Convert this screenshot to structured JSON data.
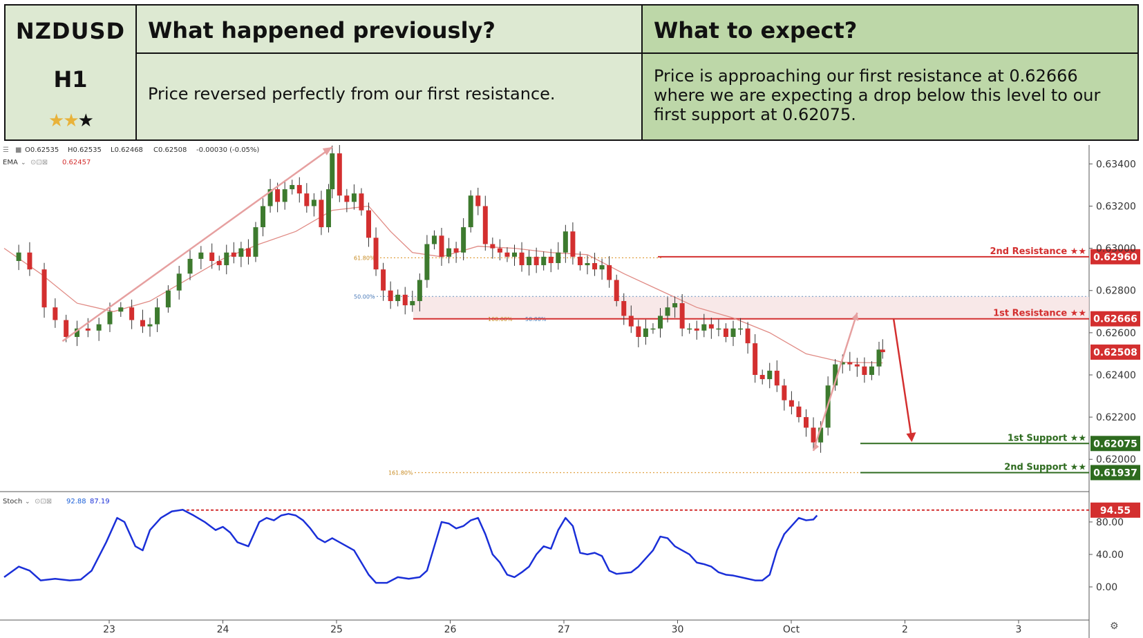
{
  "header": {
    "symbol": "NZDUSD",
    "timeframe": "H1",
    "rating": {
      "filled": 2,
      "total": 3
    },
    "previous_title": "What happened previously?",
    "previous_text": "Price reversed perfectly from our first resistance.",
    "expect_title": "What to expect?",
    "expect_text": "Price is approaching our first resistance at 0.62666 where we are expecting a drop below this level to our first support at 0.62075."
  },
  "indicators": {
    "ohlc": {
      "o": "O0.62535",
      "h": "H0.62535",
      "l": "L0.62468",
      "c": "C0.62508",
      "chg": "-0.00030 (-0.05%)"
    },
    "ema_label": "EMA",
    "ema_value": "0.62457",
    "stoch_label": "Stoch",
    "stoch_k": "92.88",
    "stoch_d": "87.19"
  },
  "chart_data": {
    "type": "candlestick",
    "title": "",
    "y_axis_ticks": [
      "0.63400",
      "0.63200",
      "0.63000",
      "0.62800",
      "0.62600",
      "0.62400",
      "0.62200",
      "0.62000"
    ],
    "x_axis_ticks": [
      "23",
      "24",
      "25",
      "26",
      "27",
      "30",
      "Oct",
      "2",
      "3"
    ],
    "ylim": [
      0.6186,
      0.6347
    ],
    "current_price": {
      "value": 0.62508,
      "label": "0.62508"
    },
    "levels": [
      {
        "name": "2nd Resistance ★★",
        "value": 0.6296,
        "label": "0.62960",
        "color": "#d32f2f"
      },
      {
        "name": "1st Resistance ★★",
        "value": 0.62666,
        "label": "0.62666",
        "color": "#d32f2f"
      },
      {
        "name": "1st Support ★★",
        "value": 0.62075,
        "label": "0.62075",
        "color": "#2e6b1f"
      },
      {
        "name": "2nd Support ★★",
        "value": 0.61937,
        "label": "0.61937",
        "color": "#2e6b1f"
      }
    ],
    "fib_labels": {
      "r618": "61.80%",
      "r50": "50.00%",
      "r100": "100.00%",
      "r50b": "50.00%",
      "e1618": "161.80%"
    },
    "fib_values": {
      "r618": 0.62955,
      "r50": 0.62772,
      "r100": 0.62665,
      "e1618": 0.61937
    },
    "colors": {
      "up": "#3d7a2e",
      "down": "#d32f2f",
      "ema": "#e08a84",
      "stoch": "#1a2fd8",
      "arrow": "#e6a0a0"
    },
    "price_series": [
      [
        0.0,
        0.6294
      ],
      [
        0.2,
        0.6298
      ],
      [
        0.35,
        0.629
      ],
      [
        0.55,
        0.6272
      ],
      [
        0.7,
        0.6266
      ],
      [
        0.85,
        0.6258
      ],
      [
        1.0,
        0.6262
      ],
      [
        1.15,
        0.6261
      ],
      [
        1.3,
        0.6264
      ],
      [
        1.45,
        0.627
      ],
      [
        1.6,
        0.6272
      ],
      [
        1.75,
        0.6266
      ],
      [
        1.9,
        0.6263
      ],
      [
        2.0,
        0.6264
      ],
      [
        2.1,
        0.6272
      ],
      [
        2.25,
        0.628
      ],
      [
        2.4,
        0.6288
      ],
      [
        2.55,
        0.6295
      ],
      [
        2.7,
        0.6298
      ],
      [
        2.85,
        0.6294
      ],
      [
        2.95,
        0.6292
      ],
      [
        3.05,
        0.6298
      ],
      [
        3.15,
        0.6296
      ],
      [
        3.25,
        0.63
      ],
      [
        3.35,
        0.6296
      ],
      [
        3.45,
        0.631
      ],
      [
        3.55,
        0.632
      ],
      [
        3.65,
        0.6328
      ],
      [
        3.75,
        0.6322
      ],
      [
        3.85,
        0.6328
      ],
      [
        3.95,
        0.633
      ],
      [
        4.05,
        0.6326
      ],
      [
        4.15,
        0.632
      ],
      [
        4.25,
        0.6323
      ],
      [
        4.35,
        0.631
      ],
      [
        4.45,
        0.6328
      ],
      [
        4.5,
        0.6345
      ],
      [
        4.6,
        0.6325
      ],
      [
        4.7,
        0.6322
      ],
      [
        4.8,
        0.6326
      ],
      [
        4.9,
        0.6318
      ],
      [
        5.0,
        0.6305
      ],
      [
        5.1,
        0.629
      ],
      [
        5.2,
        0.628
      ],
      [
        5.3,
        0.6275
      ],
      [
        5.4,
        0.6278
      ],
      [
        5.5,
        0.6273
      ],
      [
        5.6,
        0.6275
      ],
      [
        5.7,
        0.6285
      ],
      [
        5.8,
        0.6302
      ],
      [
        5.9,
        0.6306
      ],
      [
        6.0,
        0.6296
      ],
      [
        6.1,
        0.63
      ],
      [
        6.2,
        0.6298
      ],
      [
        6.3,
        0.631
      ],
      [
        6.4,
        0.6325
      ],
      [
        6.5,
        0.632
      ],
      [
        6.6,
        0.6302
      ],
      [
        6.7,
        0.63
      ],
      [
        6.8,
        0.6298
      ],
      [
        6.9,
        0.6296
      ],
      [
        7.0,
        0.6298
      ],
      [
        7.1,
        0.6292
      ],
      [
        7.2,
        0.6296
      ],
      [
        7.3,
        0.6292
      ],
      [
        7.4,
        0.6296
      ],
      [
        7.5,
        0.6293
      ],
      [
        7.6,
        0.6298
      ],
      [
        7.7,
        0.6308
      ],
      [
        7.8,
        0.6296
      ],
      [
        7.9,
        0.6292
      ],
      [
        8.0,
        0.6293
      ],
      [
        8.1,
        0.629
      ],
      [
        8.2,
        0.6292
      ],
      [
        8.3,
        0.6285
      ],
      [
        8.4,
        0.6275
      ],
      [
        8.5,
        0.6268
      ],
      [
        8.6,
        0.6263
      ],
      [
        8.7,
        0.6258
      ],
      [
        8.8,
        0.6262
      ],
      [
        8.9,
        0.6262
      ],
      [
        9.0,
        0.6268
      ],
      [
        9.1,
        0.6272
      ],
      [
        9.2,
        0.6274
      ],
      [
        9.3,
        0.6262
      ],
      [
        9.4,
        0.6262
      ],
      [
        9.5,
        0.6261
      ],
      [
        9.6,
        0.6264
      ],
      [
        9.7,
        0.6262
      ],
      [
        9.8,
        0.6262
      ],
      [
        9.9,
        0.6258
      ],
      [
        10.0,
        0.6262
      ],
      [
        10.1,
        0.6262
      ],
      [
        10.2,
        0.6255
      ],
      [
        10.3,
        0.624
      ],
      [
        10.4,
        0.6238
      ],
      [
        10.5,
        0.6242
      ],
      [
        10.6,
        0.6235
      ],
      [
        10.7,
        0.6228
      ],
      [
        10.8,
        0.6225
      ],
      [
        10.9,
        0.622
      ],
      [
        11.0,
        0.6215
      ],
      [
        11.1,
        0.6208
      ],
      [
        11.2,
        0.6215
      ],
      [
        11.3,
        0.6235
      ],
      [
        11.4,
        0.6245
      ],
      [
        11.5,
        0.6246
      ],
      [
        11.6,
        0.6245
      ],
      [
        11.7,
        0.6244
      ],
      [
        11.8,
        0.624
      ],
      [
        11.9,
        0.6244
      ],
      [
        12.0,
        0.6252
      ],
      [
        12.05,
        0.62508
      ]
    ],
    "ema_series": [
      [
        0.0,
        0.63
      ],
      [
        0.5,
        0.6288
      ],
      [
        1.0,
        0.6274
      ],
      [
        1.5,
        0.627
      ],
      [
        2.0,
        0.6275
      ],
      [
        2.5,
        0.6285
      ],
      [
        3.0,
        0.6295
      ],
      [
        3.5,
        0.6302
      ],
      [
        4.0,
        0.6308
      ],
      [
        4.5,
        0.6318
      ],
      [
        5.0,
        0.632
      ],
      [
        5.3,
        0.6308
      ],
      [
        5.6,
        0.6298
      ],
      [
        6.0,
        0.6296
      ],
      [
        6.5,
        0.6301
      ],
      [
        7.0,
        0.63
      ],
      [
        7.5,
        0.6298
      ],
      [
        8.0,
        0.6297
      ],
      [
        8.5,
        0.6288
      ],
      [
        9.0,
        0.628
      ],
      [
        9.5,
        0.6272
      ],
      [
        10.0,
        0.6267
      ],
      [
        10.5,
        0.626
      ],
      [
        11.0,
        0.625
      ],
      [
        11.5,
        0.6246
      ],
      [
        12.05,
        0.62457
      ]
    ],
    "stoch_ticks": [
      "80.00",
      "40.00",
      "0.00"
    ],
    "stoch_level": {
      "value": 94.55,
      "label": "94.55"
    },
    "stoch_series": [
      [
        0.0,
        12
      ],
      [
        0.2,
        25
      ],
      [
        0.35,
        20
      ],
      [
        0.5,
        8
      ],
      [
        0.7,
        10
      ],
      [
        0.9,
        8
      ],
      [
        1.05,
        9
      ],
      [
        1.2,
        20
      ],
      [
        1.4,
        55
      ],
      [
        1.55,
        85
      ],
      [
        1.65,
        80
      ],
      [
        1.8,
        50
      ],
      [
        1.9,
        45
      ],
      [
        2.0,
        70
      ],
      [
        2.15,
        85
      ],
      [
        2.3,
        93
      ],
      [
        2.45,
        95
      ],
      [
        2.6,
        88
      ],
      [
        2.75,
        80
      ],
      [
        2.9,
        70
      ],
      [
        3.0,
        74
      ],
      [
        3.1,
        67
      ],
      [
        3.2,
        55
      ],
      [
        3.35,
        50
      ],
      [
        3.5,
        80
      ],
      [
        3.6,
        85
      ],
      [
        3.7,
        82
      ],
      [
        3.8,
        88
      ],
      [
        3.9,
        90
      ],
      [
        4.0,
        88
      ],
      [
        4.1,
        82
      ],
      [
        4.2,
        72
      ],
      [
        4.3,
        60
      ],
      [
        4.4,
        55
      ],
      [
        4.5,
        60
      ],
      [
        4.6,
        55
      ],
      [
        4.7,
        50
      ],
      [
        4.8,
        45
      ],
      [
        4.9,
        30
      ],
      [
        5.0,
        15
      ],
      [
        5.1,
        5
      ],
      [
        5.25,
        5
      ],
      [
        5.4,
        12
      ],
      [
        5.55,
        10
      ],
      [
        5.7,
        12
      ],
      [
        5.8,
        20
      ],
      [
        5.9,
        50
      ],
      [
        6.0,
        80
      ],
      [
        6.1,
        78
      ],
      [
        6.2,
        72
      ],
      [
        6.3,
        75
      ],
      [
        6.4,
        82
      ],
      [
        6.5,
        85
      ],
      [
        6.6,
        65
      ],
      [
        6.7,
        40
      ],
      [
        6.8,
        30
      ],
      [
        6.9,
        15
      ],
      [
        7.0,
        12
      ],
      [
        7.1,
        18
      ],
      [
        7.2,
        25
      ],
      [
        7.3,
        40
      ],
      [
        7.4,
        50
      ],
      [
        7.5,
        47
      ],
      [
        7.6,
        70
      ],
      [
        7.7,
        85
      ],
      [
        7.8,
        75
      ],
      [
        7.9,
        42
      ],
      [
        8.0,
        40
      ],
      [
        8.1,
        42
      ],
      [
        8.2,
        38
      ],
      [
        8.3,
        20
      ],
      [
        8.4,
        16
      ],
      [
        8.5,
        17
      ],
      [
        8.6,
        18
      ],
      [
        8.7,
        25
      ],
      [
        8.8,
        35
      ],
      [
        8.9,
        45
      ],
      [
        9.0,
        62
      ],
      [
        9.1,
        60
      ],
      [
        9.2,
        50
      ],
      [
        9.3,
        45
      ],
      [
        9.4,
        40
      ],
      [
        9.5,
        30
      ],
      [
        9.6,
        28
      ],
      [
        9.7,
        25
      ],
      [
        9.8,
        18
      ],
      [
        9.9,
        15
      ],
      [
        10.0,
        14
      ],
      [
        10.1,
        12
      ],
      [
        10.2,
        10
      ],
      [
        10.3,
        8
      ],
      [
        10.4,
        8
      ],
      [
        10.5,
        15
      ],
      [
        10.6,
        45
      ],
      [
        10.7,
        65
      ],
      [
        10.8,
        75
      ],
      [
        10.9,
        85
      ],
      [
        11.0,
        82
      ],
      [
        11.1,
        83
      ],
      [
        11.15,
        88
      ]
    ]
  },
  "settings_icon": "gear-icon"
}
